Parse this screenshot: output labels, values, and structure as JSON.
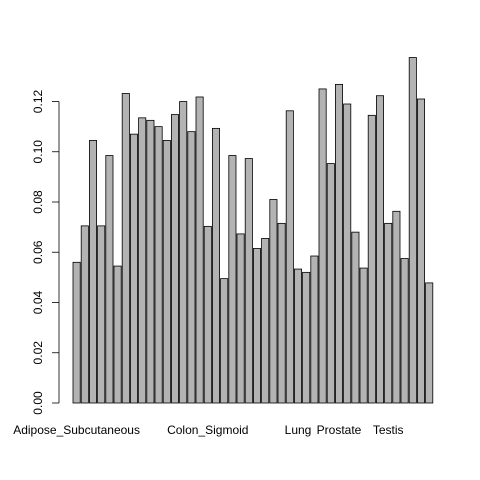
{
  "chart_data": {
    "type": "bar",
    "title": "",
    "xlabel": "",
    "ylabel": "",
    "ylim": [
      0,
      0.14
    ],
    "yticks": [
      0,
      0.02,
      0.04,
      0.06,
      0.08,
      0.1,
      0.12
    ],
    "ytick_labels": [
      "0.00",
      "0.02",
      "0.04",
      "0.06",
      "0.08",
      "0.10",
      "0.12"
    ],
    "grid": false,
    "legend": "none",
    "bar_color": "#b3b3b3",
    "values": [
      0.056,
      0.0705,
      0.1045,
      0.0705,
      0.0985,
      0.0545,
      0.1232,
      0.107,
      0.1135,
      0.1125,
      0.11,
      0.1045,
      0.1148,
      0.12,
      0.108,
      0.1218,
      0.0703,
      0.1093,
      0.0495,
      0.0985,
      0.0673,
      0.0973,
      0.0615,
      0.0655,
      0.081,
      0.0715,
      0.1163,
      0.0533,
      0.052,
      0.0585,
      0.125,
      0.0953,
      0.1268,
      0.119,
      0.068,
      0.0537,
      0.1145,
      0.1223,
      0.0715,
      0.0763,
      0.0575,
      0.1375,
      0.121,
      0.0478
    ],
    "category_labels": [
      {
        "index": 0,
        "text": "Adipose_Subcutaneous"
      },
      {
        "index": 16,
        "text": "Colon_Sigmoid"
      },
      {
        "index": 27,
        "text": "Lung"
      },
      {
        "index": 32,
        "text": "Prostate"
      },
      {
        "index": 38,
        "text": "Testis"
      }
    ]
  }
}
